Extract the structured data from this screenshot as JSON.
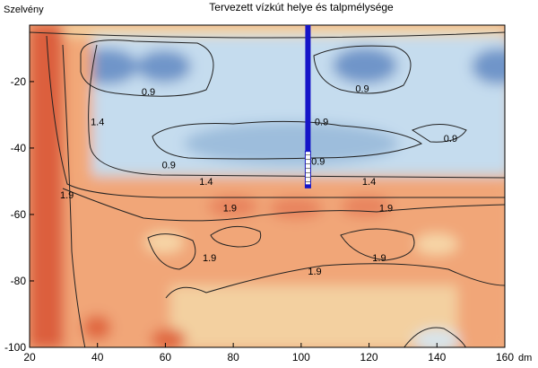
{
  "chart_data": {
    "type": "contour",
    "title": "Tervezett vízkút helye és talpmélysége",
    "ylabel": "Szelvény",
    "xlabel": "dm",
    "xlim": [
      20,
      160
    ],
    "ylim": [
      -100,
      -3
    ],
    "x_ticks": [
      20,
      40,
      60,
      80,
      100,
      120,
      140,
      160
    ],
    "y_ticks": [
      -20,
      -40,
      -60,
      -80,
      -100
    ],
    "contour_labels": [
      {
        "text": "0.9",
        "x": 55,
        "y": -23
      },
      {
        "text": "0.9",
        "x": 118,
        "y": -22
      },
      {
        "text": "0.9",
        "x": 106,
        "y": -32
      },
      {
        "text": "0.9",
        "x": 144,
        "y": -37
      },
      {
        "text": "0.9",
        "x": 61,
        "y": -45
      },
      {
        "text": "0.9",
        "x": 105,
        "y": -44
      },
      {
        "text": "1.4",
        "x": 40,
        "y": -32
      },
      {
        "text": "1.4",
        "x": 72,
        "y": -50
      },
      {
        "text": "1.4",
        "x": 120,
        "y": -50
      },
      {
        "text": "1.9",
        "x": 31,
        "y": -54
      },
      {
        "text": "1.9",
        "x": 79,
        "y": -58
      },
      {
        "text": "1.9",
        "x": 125,
        "y": -58
      },
      {
        "text": "1.9",
        "x": 73,
        "y": -73
      },
      {
        "text": "1.9",
        "x": 123,
        "y": -73
      },
      {
        "text": "1.9",
        "x": 104,
        "y": -77
      }
    ],
    "well": {
      "x": 102,
      "top": -3,
      "casing_bottom": -41,
      "bottom": -52,
      "color": "#1515c8"
    }
  }
}
